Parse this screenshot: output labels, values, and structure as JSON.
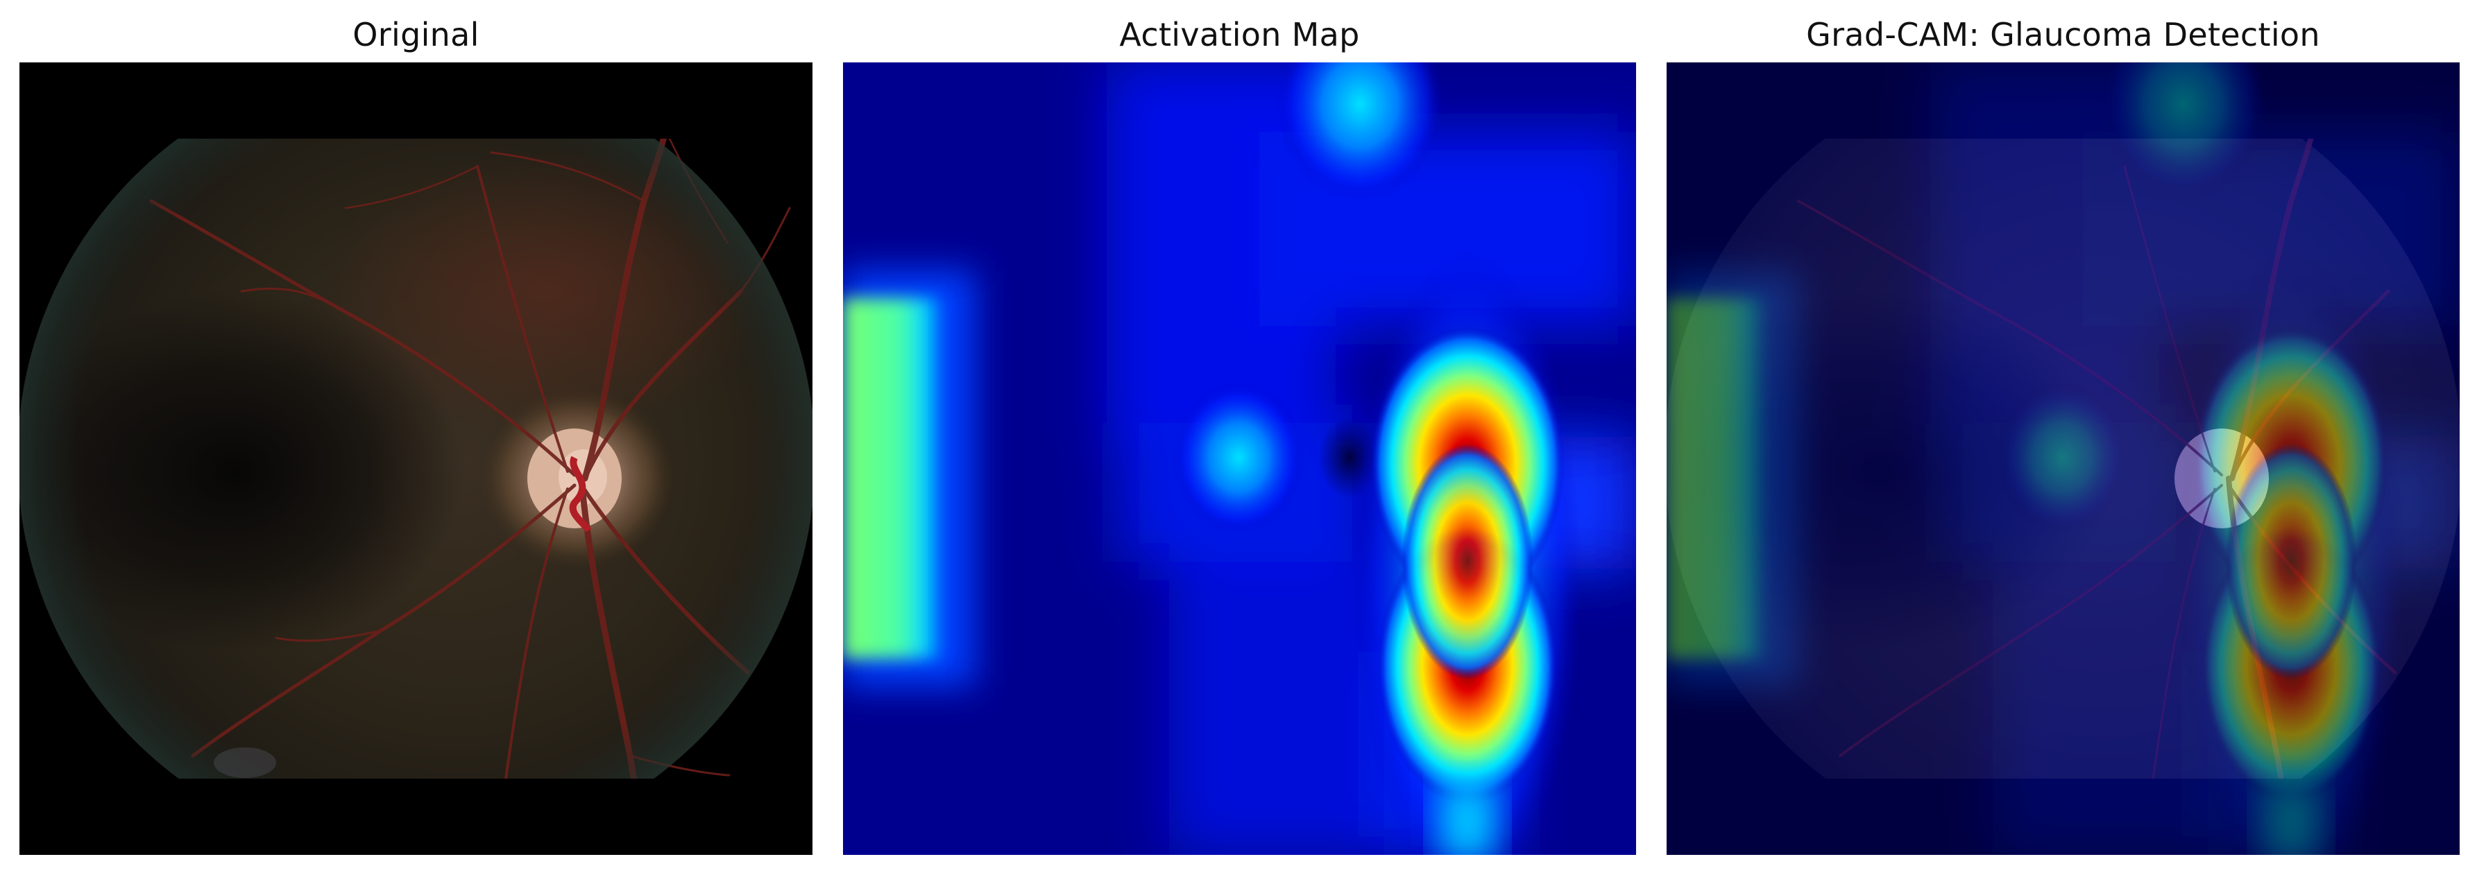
{
  "panels": [
    {
      "title": "Original"
    },
    {
      "title": "Activation Map"
    },
    {
      "title": "Grad-CAM: Glaucoma Detection"
    }
  ],
  "colors": {
    "background": "#ffffff",
    "fundus_black": "#000000",
    "colormap": "jet",
    "cold": "#00008f",
    "hot": "#9b0000"
  },
  "icons": []
}
